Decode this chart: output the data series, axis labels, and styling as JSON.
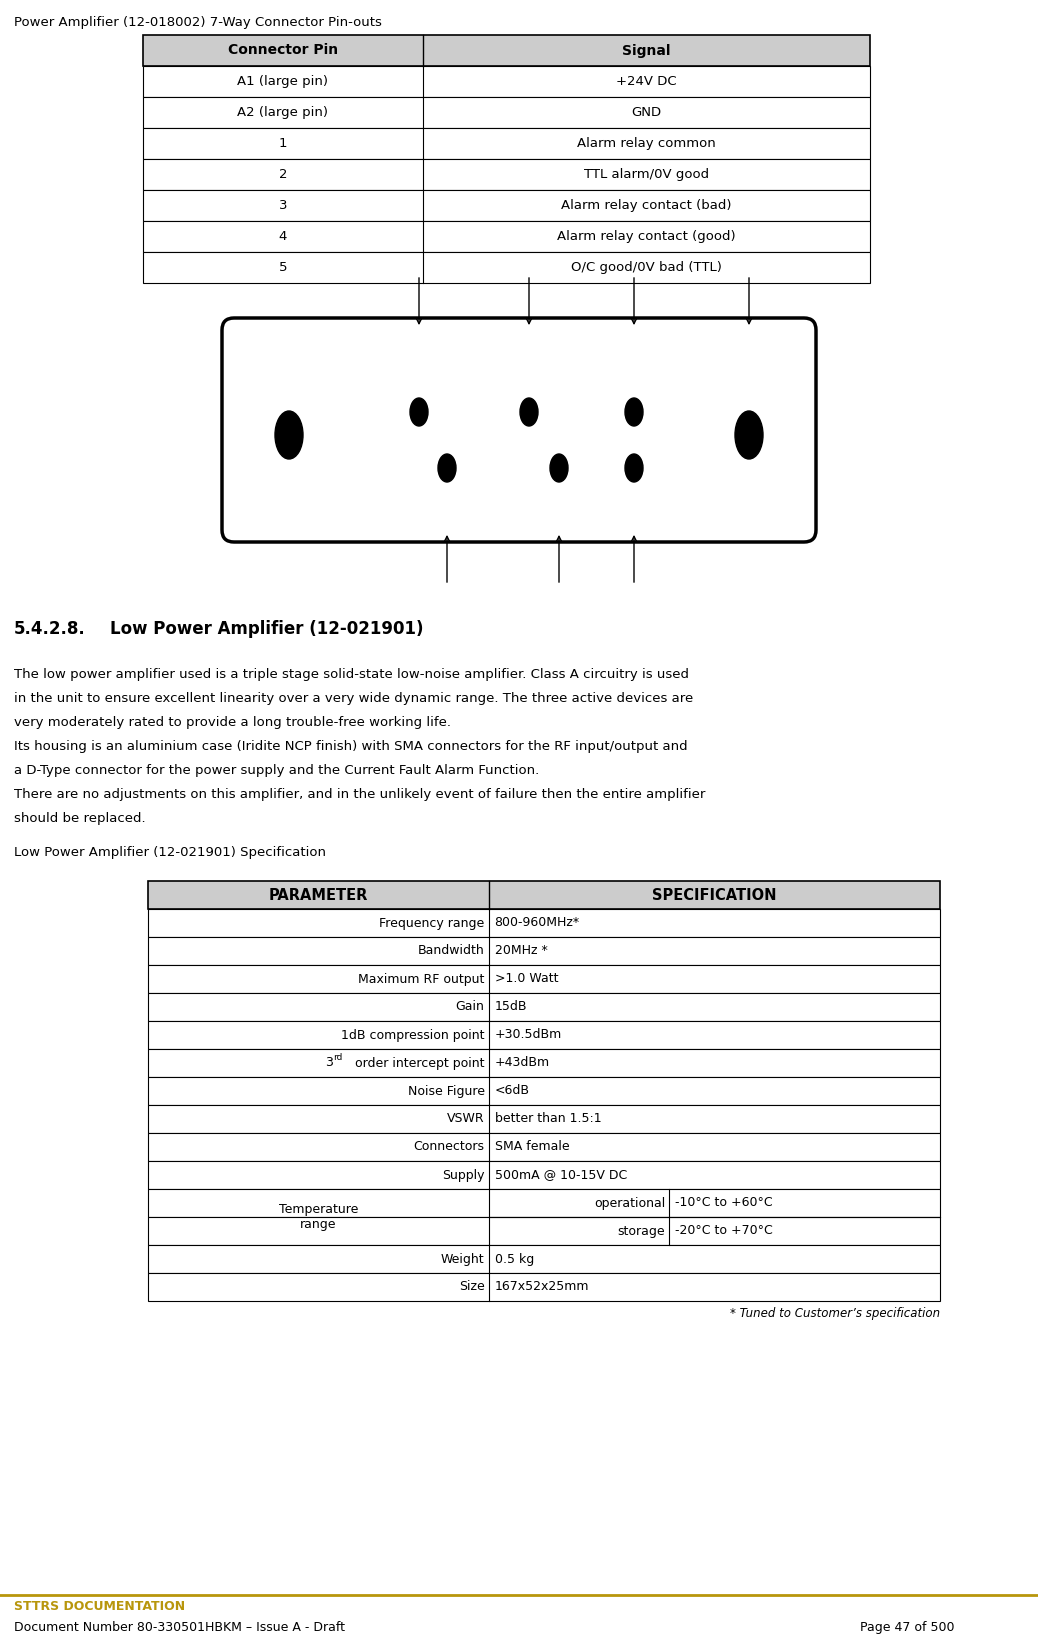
{
  "page_title1": "Power Amplifier (12-018002) 7-Way Connector Pin-outs",
  "table1_headers": [
    "Connector Pin",
    "Signal"
  ],
  "table1_rows": [
    [
      "A1 (large pin)",
      "+24V DC"
    ],
    [
      "A2 (large pin)",
      "GND"
    ],
    [
      "1",
      "Alarm relay common"
    ],
    [
      "2",
      "TTL alarm/0V good"
    ],
    [
      "3",
      "Alarm relay contact (bad)"
    ],
    [
      "4",
      "Alarm relay contact (good)"
    ],
    [
      "5",
      "O/C good/0V bad (TTL)"
    ]
  ],
  "body_text_lines": [
    "The low power amplifier used is a triple stage solid-state low-noise amplifier. Class A circuitry is used",
    "in the unit to ensure excellent linearity over a very wide dynamic range. The three active devices are",
    "very moderately rated to provide a long trouble-free working life.",
    "Its housing is an aluminium case (Iridite NCP finish) with SMA connectors for the RF input/output and",
    "a D-Type connector for the power supply and the Current Fault Alarm Function.",
    "There are no adjustments on this amplifier, and in the unlikely event of failure then the entire amplifier",
    "should be replaced."
  ],
  "spec_table_title": "Low Power Amplifier (12-021901) Specification",
  "table2_headers": [
    "PARAMETER",
    "SPECIFICATION"
  ],
  "table2_rows": [
    [
      "Frequency range",
      "800-960MHz*"
    ],
    [
      "Bandwidth",
      "20MHz *"
    ],
    [
      "Maximum RF output",
      ">1.0 Watt"
    ],
    [
      "Gain",
      "15dB"
    ],
    [
      "1dB compression point",
      "+30.5dBm"
    ],
    [
      "3rd order intercept point",
      "+43dBm"
    ],
    [
      "Noise Figure",
      "<6dB"
    ],
    [
      "VSWR",
      "better than 1.5:1"
    ],
    [
      "Connectors",
      "SMA female"
    ],
    [
      "Supply",
      "500mA @ 10-15V DC"
    ],
    [
      "Temperature range",
      "operational",
      "-10°C to +60°C"
    ],
    [
      "Temperature range",
      "storage",
      "-20°C to +70°C"
    ],
    [
      "Weight",
      "0.5 kg"
    ],
    [
      "Size",
      "167x52x25mm"
    ]
  ],
  "footnote": "* Tuned to Customer’s specification",
  "footer_line1": "STTRS DOCUMENTATION",
  "footer_line2": "Document Number 80-330501HBKM – Issue A - Draft",
  "footer_page": "Page 47 of 500",
  "bg_color": "#ffffff",
  "table_header_bg": "#cccccc",
  "table_border_color": "#000000",
  "footer_line_color": "#b8960c",
  "text_color": "#000000"
}
